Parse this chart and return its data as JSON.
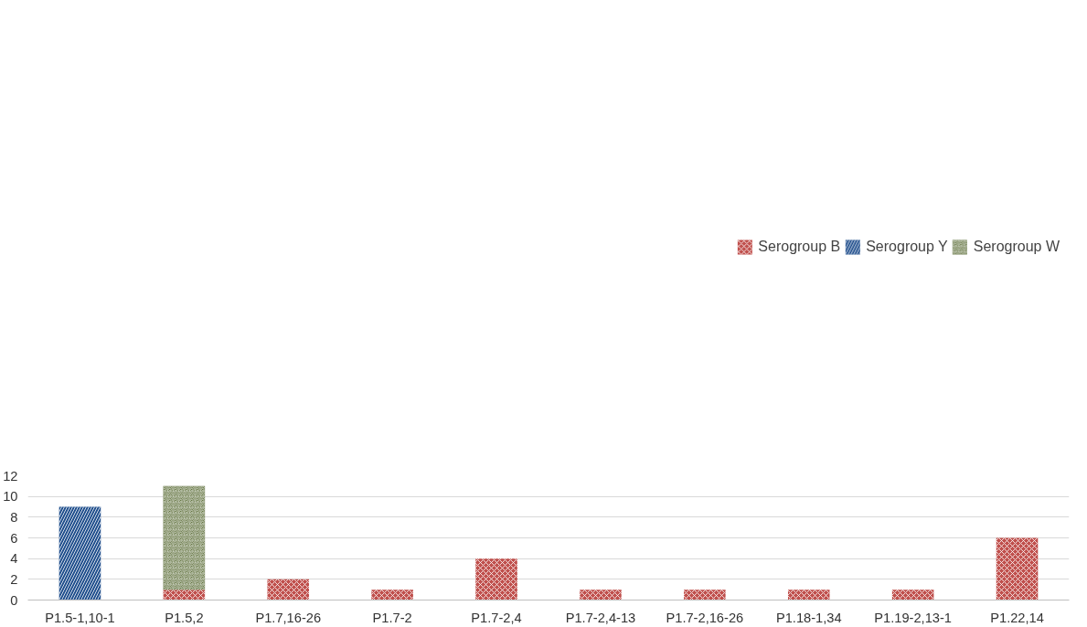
{
  "chart_data": {
    "type": "bar",
    "stacked": true,
    "categories": [
      "P1.5-1,10-1",
      "P1.5,2",
      "P1.7,16-26",
      "P1.7-2",
      "P1.7-2,4",
      "P1.7-2,4-13",
      "P1.7-2,16-26",
      "P1.18-1,34",
      "P1.19-2,13-1",
      "P1.22,14"
    ],
    "series": [
      {
        "name": "Serogroup B",
        "color": "#c0504d",
        "values": [
          null,
          1,
          2,
          1,
          4,
          1,
          1,
          1,
          1,
          6
        ]
      },
      {
        "name": "Serogroup Y",
        "color": "#1f4e8c",
        "values": [
          9,
          null,
          null,
          null,
          null,
          null,
          null,
          null,
          null,
          null
        ]
      },
      {
        "name": "Serogroup W",
        "color": "#4f6228",
        "values": [
          null,
          10,
          null,
          null,
          null,
          null,
          null,
          null,
          null,
          null
        ]
      }
    ],
    "ylim": [
      0,
      12
    ],
    "yticks": [
      0,
      2,
      4,
      6,
      8,
      10,
      12
    ],
    "grid": "y",
    "legend": "top right"
  }
}
